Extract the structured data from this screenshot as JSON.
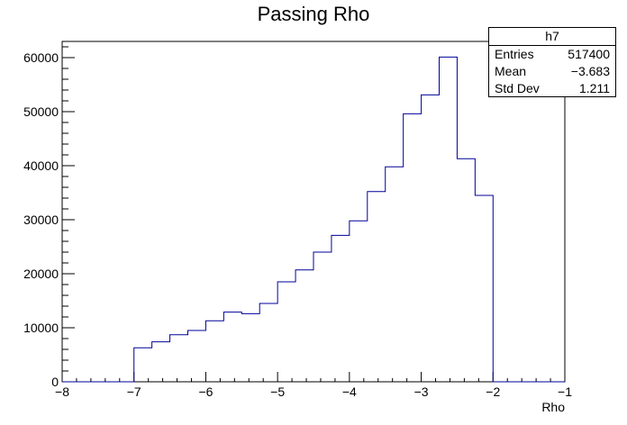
{
  "chart_data": {
    "type": "histogram",
    "title": "Passing Rho",
    "xlabel": "Rho",
    "ylabel": "",
    "xlim": [
      -8,
      -1
    ],
    "ylim": [
      0,
      63000
    ],
    "line_color": "#000099",
    "bin_edges": [
      -7.0,
      -6.75,
      -6.5,
      -6.25,
      -6.0,
      -5.75,
      -5.5,
      -5.25,
      -5.0,
      -4.75,
      -4.5,
      -4.25,
      -4.0,
      -3.75,
      -3.5,
      -3.25,
      -3.0,
      -2.75,
      -2.5,
      -2.25,
      -2.0
    ],
    "values": [
      6300,
      7400,
      8700,
      9500,
      11300,
      12900,
      12600,
      14500,
      18500,
      20700,
      24000,
      27100,
      29800,
      35200,
      39800,
      49600,
      53100,
      60100,
      41300,
      34500
    ],
    "x_ticks": [
      -8,
      -7,
      -6,
      -5,
      -4,
      -3,
      -2,
      -1
    ],
    "x_tick_labels": [
      "−8",
      "−7",
      "−6",
      "−5",
      "−4",
      "−3",
      "−2",
      "−1"
    ],
    "y_ticks": [
      0,
      10000,
      20000,
      30000,
      40000,
      50000,
      60000
    ],
    "y_tick_labels": [
      "0",
      "10000",
      "20000",
      "30000",
      "40000",
      "50000",
      "60000"
    ],
    "stats": {
      "name": "h7",
      "rows": [
        {
          "label": "Entries",
          "value": "517400"
        },
        {
          "label": "Mean",
          "value": "−3.683"
        },
        {
          "label": "Std Dev",
          "value": "1.211"
        }
      ]
    }
  }
}
